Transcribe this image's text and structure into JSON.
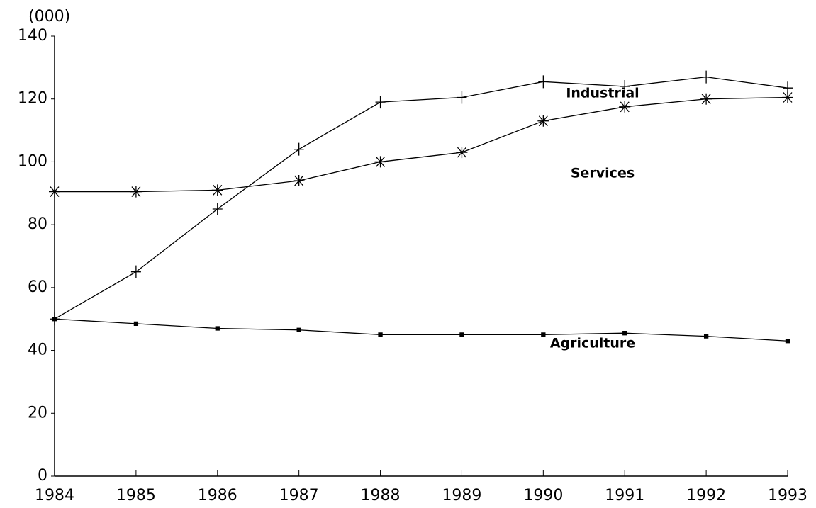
{
  "chart_data": {
    "type": "line",
    "y_unit_label": "(000)",
    "x": [
      1984,
      1985,
      1986,
      1987,
      1988,
      1989,
      1990,
      1991,
      1992,
      1993
    ],
    "xlim": [
      1984,
      1993
    ],
    "xticks": [
      1984,
      1985,
      1986,
      1987,
      1988,
      1989,
      1990,
      1991,
      1992,
      1993
    ],
    "ylim": [
      0,
      140
    ],
    "yticks": [
      0,
      20,
      40,
      60,
      80,
      100,
      120,
      140
    ],
    "grid": false,
    "series": [
      {
        "name": "Industrial",
        "color": "#000000",
        "marker": "plus",
        "values": [
          50,
          65,
          85,
          104,
          119,
          120.5,
          125.5,
          124,
          127,
          123.5
        ]
      },
      {
        "name": "Services",
        "color": "#000000",
        "marker": "asterisk",
        "values": [
          90.5,
          90.5,
          91,
          94,
          100,
          103,
          113,
          117.5,
          120,
          120.5
        ]
      },
      {
        "name": "Agriculture",
        "color": "#000000",
        "marker": "square",
        "values": [
          50,
          48.5,
          47,
          46.5,
          45,
          45,
          45,
          45.5,
          44.5,
          43
        ]
      }
    ]
  }
}
